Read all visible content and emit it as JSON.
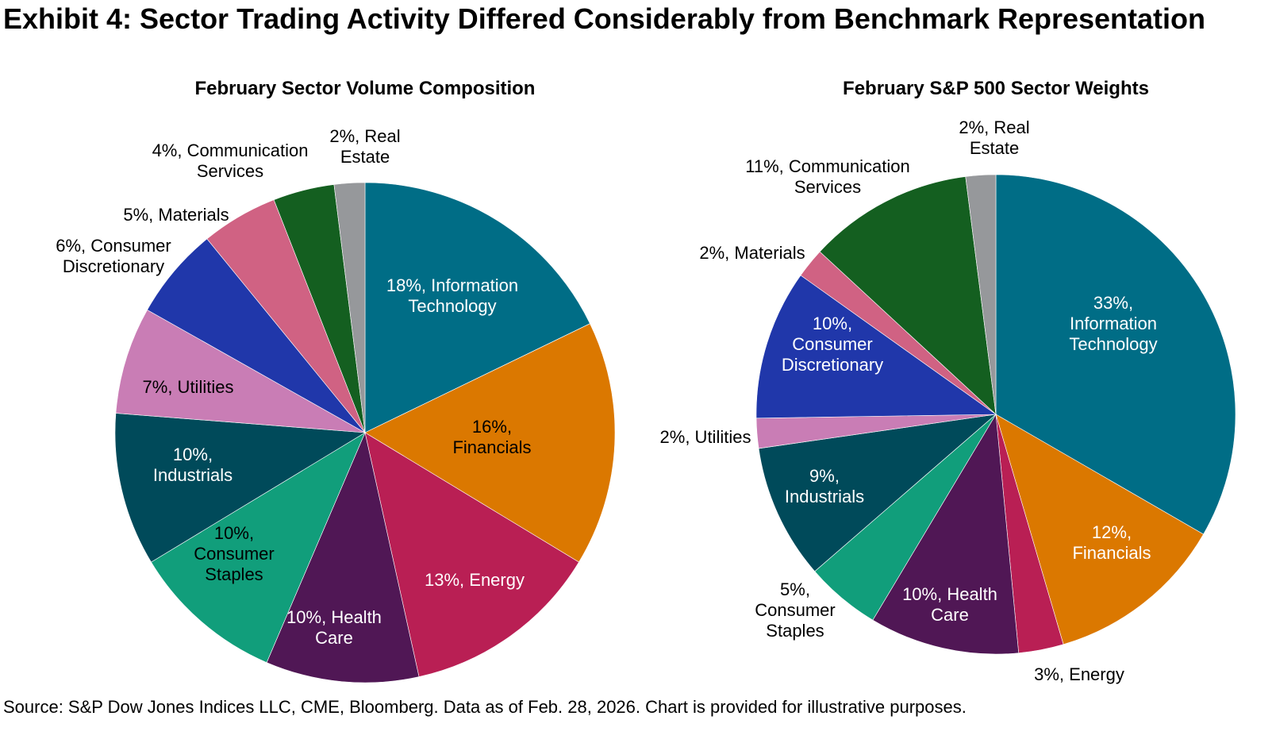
{
  "title": "Exhibit 4: Sector Trading Activity Differed Considerably from Benchmark Representation",
  "source": "Source: S&P Dow Jones Indices LLC, CME, Bloomberg. Data as of Feb. 28, 2026. Chart is provided for illustrative purposes.",
  "colors": {
    "Information Technology": "#006D86",
    "Financials": "#DB7800",
    "Energy": "#B91F54",
    "Health Care": "#501755",
    "Consumer Staples": "#119E7B",
    "Industrials": "#004A5A",
    "Utilities": "#C97DB5",
    "Consumer Discretionary": "#2037AA",
    "Materials": "#D06283",
    "Communication Services": "#145F20",
    "Real Estate": "#96989B"
  },
  "chart_data": [
    {
      "type": "pie",
      "title": "February Sector Volume Composition",
      "start_angle": "12 o'clock, clockwise",
      "slices": [
        {
          "name": "Information Technology",
          "value": 18,
          "label": [
            "18%, Information",
            "Technology"
          ],
          "label_color": "#ffffff",
          "placement": "inside"
        },
        {
          "name": "Financials",
          "value": 16,
          "label": [
            "16%,",
            "Financials"
          ],
          "label_color": "#000000",
          "placement": "inside"
        },
        {
          "name": "Energy",
          "value": 13,
          "label": [
            "13%, Energy"
          ],
          "label_color": "#ffffff",
          "placement": "inside"
        },
        {
          "name": "Health Care",
          "value": 10,
          "label": [
            "10%, Health",
            "Care"
          ],
          "label_color": "#ffffff",
          "placement": "inside"
        },
        {
          "name": "Consumer Staples",
          "value": 10,
          "label": [
            "10%,",
            "Consumer",
            "Staples"
          ],
          "label_color": "#000000",
          "placement": "inside"
        },
        {
          "name": "Industrials",
          "value": 10,
          "label": [
            "10%,",
            "Industrials"
          ],
          "label_color": "#ffffff",
          "placement": "inside"
        },
        {
          "name": "Utilities",
          "value": 7,
          "label": [
            "7%, Utilities"
          ],
          "label_color": "#000000",
          "placement": "inside"
        },
        {
          "name": "Consumer Discretionary",
          "value": 6,
          "label": [
            "6%, Consumer",
            "Discretionary"
          ],
          "label_color": "#000000",
          "placement": "outside"
        },
        {
          "name": "Materials",
          "value": 5,
          "label": [
            "5%, Materials"
          ],
          "label_color": "#000000",
          "placement": "outside"
        },
        {
          "name": "Communication Services",
          "value": 4,
          "label": [
            "4%, Communication",
            "Services"
          ],
          "label_color": "#000000",
          "placement": "outside"
        },
        {
          "name": "Real Estate",
          "value": 2,
          "label": [
            "2%, Real",
            "Estate"
          ],
          "label_color": "#000000",
          "placement": "outside"
        }
      ]
    },
    {
      "type": "pie",
      "title": "February S&P 500 Sector Weights",
      "start_angle": "12 o'clock, clockwise",
      "slices": [
        {
          "name": "Information Technology",
          "value": 33,
          "label": [
            "33%,",
            "Information",
            "Technology"
          ],
          "label_color": "#ffffff",
          "placement": "inside"
        },
        {
          "name": "Financials",
          "value": 12,
          "label": [
            "12%,",
            "Financials"
          ],
          "label_color": "#ffffff",
          "placement": "inside"
        },
        {
          "name": "Energy",
          "value": 3,
          "label": [
            "3%, Energy"
          ],
          "label_color": "#000000",
          "placement": "outside"
        },
        {
          "name": "Health Care",
          "value": 10,
          "label": [
            "10%, Health",
            "Care"
          ],
          "label_color": "#ffffff",
          "placement": "inside"
        },
        {
          "name": "Consumer Staples",
          "value": 5,
          "label": [
            "5%,",
            "Consumer",
            "Staples"
          ],
          "label_color": "#000000",
          "placement": "outside"
        },
        {
          "name": "Industrials",
          "value": 9,
          "label": [
            "9%,",
            "Industrials"
          ],
          "label_color": "#ffffff",
          "placement": "inside"
        },
        {
          "name": "Utilities",
          "value": 2,
          "label": [
            "2%, Utilities"
          ],
          "label_color": "#000000",
          "placement": "outside"
        },
        {
          "name": "Consumer Discretionary",
          "value": 10,
          "label": [
            "10%,",
            "Consumer",
            "Discretionary"
          ],
          "label_color": "#ffffff",
          "placement": "inside"
        },
        {
          "name": "Materials",
          "value": 2,
          "label": [
            "2%, Materials"
          ],
          "label_color": "#000000",
          "placement": "outside"
        },
        {
          "name": "Communication Services",
          "value": 11,
          "label": [
            "11%, Communication",
            "Services"
          ],
          "label_color": "#000000",
          "placement": "outside"
        },
        {
          "name": "Real Estate",
          "value": 2,
          "label": [
            "2%, Real",
            "Estate"
          ],
          "label_color": "#000000",
          "placement": "outside"
        }
      ]
    }
  ]
}
